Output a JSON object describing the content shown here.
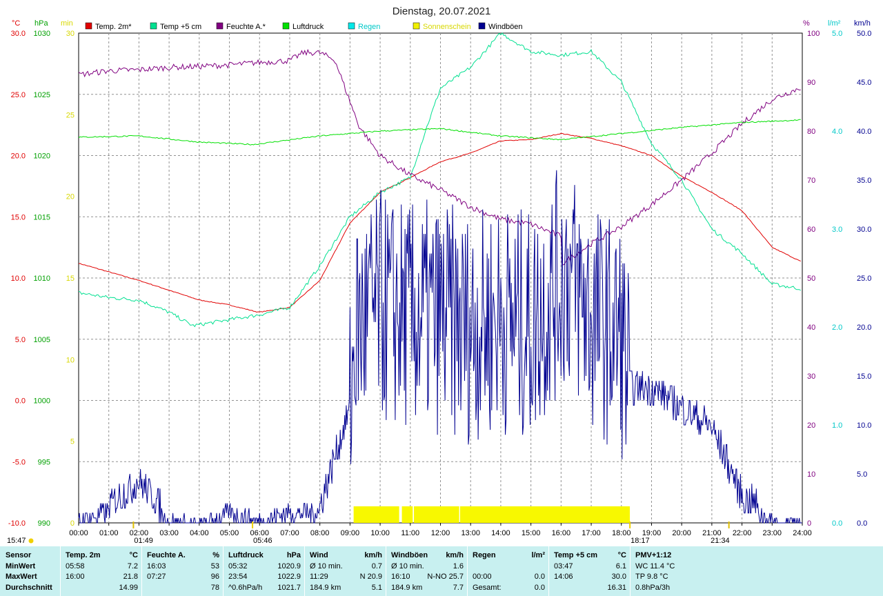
{
  "title": "Dienstag, 20.07.2021",
  "units": {
    "temp": "°C",
    "press": "hPa",
    "sun": "min",
    "hum": "%",
    "rain": "l/m²",
    "wind": "km/h"
  },
  "legend": [
    {
      "label": "Temp. 2m*",
      "color": "#e00000"
    },
    {
      "label": "Temp +5 cm",
      "color": "#00e090"
    },
    {
      "label": "Feuchte A.*",
      "color": "#800080"
    },
    {
      "label": "Luftdruck",
      "color": "#00e000"
    },
    {
      "label": "Regen",
      "color": "#00e8e8"
    },
    {
      "label": "Sonnenschein",
      "color": "#f0f000"
    },
    {
      "label": "Windböen",
      "color": "#000090"
    }
  ],
  "axes": {
    "temp_ticks": [
      "30.0",
      "25.0",
      "20.0",
      "15.0",
      "10.0",
      "5.0",
      "0.0",
      "-5.0",
      "-10.0"
    ],
    "press_ticks": [
      "1030",
      "1025",
      "1020",
      "1015",
      "1010",
      "1005",
      "1000",
      "995",
      "990"
    ],
    "sun_ticks": [
      "30",
      "25",
      "20",
      "15",
      "10",
      "5",
      "0"
    ],
    "hum_ticks": [
      "100",
      "90",
      "80",
      "70",
      "60",
      "50",
      "40",
      "30",
      "20",
      "10",
      "0"
    ],
    "rain_ticks": [
      "5.0",
      "4.0",
      "3.0",
      "2.0",
      "1.0",
      "0.0"
    ],
    "wind_ticks": [
      "50.0",
      "45.0",
      "40.0",
      "35.0",
      "30.0",
      "25.0",
      "20.0",
      "15.0",
      "10.0",
      "5.0",
      "0.0"
    ],
    "x_ticks": [
      "00:00",
      "01:00",
      "02:00",
      "03:00",
      "04:00",
      "05:00",
      "06:00",
      "07:00",
      "08:00",
      "09:00",
      "10:00",
      "11:00",
      "12:00",
      "13:00",
      "14:00",
      "15:00",
      "16:00",
      "17:00",
      "18:00",
      "19:00",
      "20:00",
      "21:00",
      "22:00",
      "23:00",
      "24:00"
    ]
  },
  "markers": {
    "moonrise": "01:49",
    "sunrise": "05:46",
    "sunset": "18:17",
    "moonset": "21:34",
    "left_time": "15:47"
  },
  "chart_data": {
    "type": "line",
    "x_unit": "hour",
    "xlim": [
      0,
      24
    ],
    "ylim_temp": [
      -10,
      30
    ],
    "ylim_press": [
      990,
      1030
    ],
    "ylim_hum": [
      0,
      100
    ],
    "ylim_wind": [
      0,
      50
    ],
    "ylim_sun": [
      0,
      30
    ],
    "ylim_rain": [
      0,
      5
    ],
    "series": [
      {
        "name": "Temp. 2m*",
        "axis": "temp",
        "color": "#e00000",
        "points": [
          [
            0,
            11.2
          ],
          [
            1,
            10.5
          ],
          [
            2,
            9.8
          ],
          [
            3,
            9.0
          ],
          [
            4,
            8.2
          ],
          [
            5,
            7.8
          ],
          [
            5.97,
            7.2
          ],
          [
            7,
            7.6
          ],
          [
            8,
            9.8
          ],
          [
            9,
            14.5
          ],
          [
            10,
            17.0
          ],
          [
            11,
            18.2
          ],
          [
            12,
            19.5
          ],
          [
            13,
            20.2
          ],
          [
            14,
            21.2
          ],
          [
            15,
            21.3
          ],
          [
            16,
            21.8
          ],
          [
            17,
            21.4
          ],
          [
            18,
            20.8
          ],
          [
            19,
            20.0
          ],
          [
            20,
            18.3
          ],
          [
            21,
            17.0
          ],
          [
            22,
            15.5
          ],
          [
            23,
            12.5
          ],
          [
            24,
            11.3
          ]
        ]
      },
      {
        "name": "Temp +5 cm",
        "axis": "temp",
        "color": "#00e090",
        "points": [
          [
            0,
            8.8
          ],
          [
            1,
            8.4
          ],
          [
            2,
            8.2
          ],
          [
            3,
            7.2
          ],
          [
            3.79,
            6.1
          ],
          [
            5,
            6.6
          ],
          [
            6,
            7.0
          ],
          [
            7,
            7.6
          ],
          [
            8,
            11.0
          ],
          [
            9,
            15.0
          ],
          [
            10,
            17.0
          ],
          [
            11,
            18.2
          ],
          [
            11.5,
            22.0
          ],
          [
            12,
            25.5
          ],
          [
            13,
            27.2
          ],
          [
            14,
            30.0
          ],
          [
            15,
            28.5
          ],
          [
            16,
            28.2
          ],
          [
            17,
            28.5
          ],
          [
            18,
            26.0
          ],
          [
            19,
            21.0
          ],
          [
            20,
            18.0
          ],
          [
            21,
            14.0
          ],
          [
            22,
            12.0
          ],
          [
            23,
            9.5
          ],
          [
            24,
            9.1
          ]
        ]
      },
      {
        "name": "Feuchte A.*",
        "axis": "hum",
        "color": "#800080",
        "points": [
          [
            0,
            91.5
          ],
          [
            1,
            92.3
          ],
          [
            2,
            92.5
          ],
          [
            3,
            93.0
          ],
          [
            4,
            93.2
          ],
          [
            5,
            93.5
          ],
          [
            6,
            94.0
          ],
          [
            7,
            94.4
          ],
          [
            7.45,
            96.0
          ],
          [
            8,
            96.0
          ],
          [
            8.5,
            94.5
          ],
          [
            9,
            86.0
          ],
          [
            9.3,
            81.0
          ],
          [
            10,
            75.0
          ],
          [
            11,
            71.0
          ],
          [
            12,
            68.0
          ],
          [
            13,
            64.5
          ],
          [
            14,
            62.0
          ],
          [
            15,
            61.0
          ],
          [
            16,
            58.5
          ],
          [
            16.05,
            53.0
          ],
          [
            17,
            57.0
          ],
          [
            18,
            60.5
          ],
          [
            19,
            65.0
          ],
          [
            20,
            70.0
          ],
          [
            21,
            75.5
          ],
          [
            22,
            81.5
          ],
          [
            23,
            86.5
          ],
          [
            24,
            89.0
          ]
        ]
      },
      {
        "name": "Luftdruck",
        "axis": "press",
        "color": "#00e000",
        "points": [
          [
            0,
            1021.5
          ],
          [
            2,
            1021.6
          ],
          [
            4,
            1021.1
          ],
          [
            5.8,
            1020.9
          ],
          [
            8,
            1021.6
          ],
          [
            10,
            1022.0
          ],
          [
            12,
            1022.2
          ],
          [
            14,
            1021.6
          ],
          [
            16,
            1021.3
          ],
          [
            18,
            1021.8
          ],
          [
            20,
            1022.3
          ],
          [
            22,
            1022.7
          ],
          [
            23.9,
            1022.9
          ]
        ]
      },
      {
        "name": "Windböen",
        "axis": "wind",
        "color": "#000090",
        "points": [
          [
            0,
            1
          ],
          [
            1,
            2
          ],
          [
            2,
            4.5
          ],
          [
            3,
            1
          ],
          [
            4,
            0.5
          ],
          [
            5,
            2
          ],
          [
            6,
            1
          ],
          [
            7,
            2
          ],
          [
            8,
            2
          ],
          [
            9,
            12
          ],
          [
            9.2,
            20
          ],
          [
            10,
            22
          ],
          [
            11,
            21
          ],
          [
            12,
            21
          ],
          [
            13,
            20
          ],
          [
            14,
            21
          ],
          [
            15,
            20
          ],
          [
            16.17,
            25.7
          ],
          [
            17,
            21
          ],
          [
            18,
            19
          ],
          [
            18.3,
            14
          ],
          [
            19,
            14
          ],
          [
            20,
            12
          ],
          [
            21,
            10
          ],
          [
            22,
            3
          ],
          [
            23,
            1
          ],
          [
            24,
            0.5
          ]
        ]
      }
    ],
    "sunshine_intervals": [
      [
        9.12,
        10.63
      ],
      [
        10.72,
        11.08
      ],
      [
        11.12,
        12.62
      ],
      [
        12.65,
        18.28
      ]
    ]
  },
  "stats": {
    "row_labels": [
      "Sensor",
      "MinWert",
      "MaxWert",
      "Durchschnitt"
    ],
    "blocks": [
      {
        "name": "Temp. 2m",
        "unit": "°C",
        "rows": [
          [
            "05:58",
            "7.2"
          ],
          [
            "16:00",
            "21.8"
          ],
          [
            "",
            "14.99"
          ]
        ]
      },
      {
        "name": "Feuchte A.",
        "unit": "%",
        "rows": [
          [
            "16:03",
            "53"
          ],
          [
            "07:27",
            "96"
          ],
          [
            "",
            "78"
          ]
        ]
      },
      {
        "name": "Luftdruck",
        "unit": "hPa",
        "rows": [
          [
            "05:32",
            "1020.9"
          ],
          [
            "23:54",
            "1022.9"
          ],
          [
            "^0.6hPa/h",
            "1021.7"
          ]
        ]
      },
      {
        "name": "Wind",
        "unit": "km/h",
        "rows": [
          [
            "Ø 10 min.",
            "0.7"
          ],
          [
            "11:29",
            "N 20.9"
          ],
          [
            "184.9 km",
            "5.1"
          ]
        ]
      },
      {
        "name": "Windböen",
        "unit": "km/h",
        "rows": [
          [
            "Ø 10 min.",
            "1.6"
          ],
          [
            "16:10",
            "N-NO 25.7"
          ],
          [
            "184.9 km",
            "7.7"
          ]
        ]
      },
      {
        "name": "Regen",
        "unit": "l/m²",
        "rows": [
          [
            "",
            ""
          ],
          [
            "00:00",
            "0.0"
          ],
          [
            "Gesamt:",
            "0.0"
          ]
        ]
      },
      {
        "name": "Temp +5 cm",
        "unit": "°C",
        "rows": [
          [
            "03:47",
            "6.1"
          ],
          [
            "14:06",
            "30.0"
          ],
          [
            "",
            "16.31"
          ]
        ]
      },
      {
        "name": "PMV+1:12",
        "unit": "",
        "rows": [
          [
            "WC 11.4 °C",
            ""
          ],
          [
            "TP 9.8 °C",
            ""
          ],
          [
            "0.8hPa/3h",
            ""
          ]
        ]
      }
    ]
  }
}
